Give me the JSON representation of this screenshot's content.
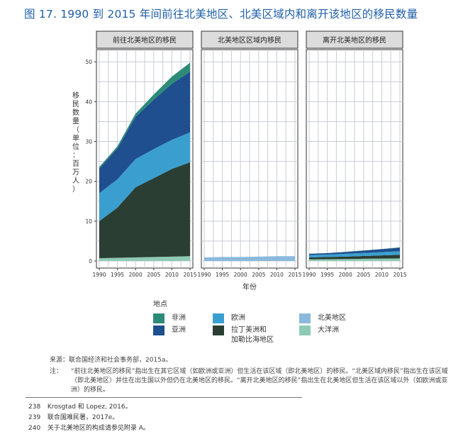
{
  "title": "图 17. 1990 到 2015 年间前往北美地区、北美区域内和离开该地区的移民数量",
  "chart_data": {
    "type": "area",
    "stacked": true,
    "ylabel": "移民数量（单位：百万人）",
    "xlabel": "年份",
    "ylim": [
      0,
      52
    ],
    "yticks": [
      0,
      10,
      20,
      30,
      40,
      50
    ],
    "x": [
      1990,
      1995,
      2000,
      2005,
      2010,
      2015
    ],
    "grid": true,
    "panels": [
      {
        "title": "前往北美地区的移民",
        "series": [
          {
            "name": "大洋洲",
            "values": [
              0.7,
              0.8,
              0.9,
              1.0,
              1.1,
              1.2
            ]
          },
          {
            "name": "拉丁美洲和加勒比海地区",
            "values": [
              9.3,
              12.6,
              17.6,
              19.8,
              22.0,
              23.6
            ]
          },
          {
            "name": "欧洲",
            "values": [
              7.0,
              7.1,
              7.1,
              7.3,
              7.3,
              7.5
            ]
          },
          {
            "name": "亚洲",
            "values": [
              6.2,
              7.8,
              10.6,
              12.4,
              14.1,
              15.2
            ]
          },
          {
            "name": "非洲",
            "values": [
              0.4,
              0.5,
              0.8,
              1.3,
              1.8,
              2.3
            ]
          }
        ]
      },
      {
        "title": "北美地区区域内移民",
        "series": [
          {
            "name": "北美地区",
            "values": [
              0.9,
              1.0,
              1.0,
              1.1,
              1.2,
              1.2
            ]
          }
        ]
      },
      {
        "title": "离开北美地区的移民",
        "series": [
          {
            "name": "大洋洲",
            "values": [
              0.4,
              0.45,
              0.5,
              0.55,
              0.6,
              0.65
            ]
          },
          {
            "name": "拉丁美洲和加勒比海地区",
            "values": [
              0.5,
              0.55,
              0.6,
              0.7,
              0.8,
              0.9
            ]
          },
          {
            "name": "欧洲",
            "values": [
              0.6,
              0.6,
              0.7,
              0.75,
              0.8,
              0.9
            ]
          },
          {
            "name": "亚洲",
            "values": [
              0.3,
              0.35,
              0.45,
              0.6,
              0.75,
              0.9
            ]
          },
          {
            "name": "非洲",
            "values": [
              0.02,
              0.03,
              0.04,
              0.05,
              0.06,
              0.07
            ]
          }
        ]
      }
    ],
    "colors": {
      "非洲": "#2e8b78",
      "亚洲": "#1f4f8f",
      "欧洲": "#3a9fcf",
      "北美地区": "#8ab9dc",
      "拉丁美洲和加勒比海地区": "#2a3e33",
      "大洋洲": "#8ecab5"
    }
  },
  "legend": {
    "title": "地点",
    "items": [
      {
        "label": "非洲",
        "color": "#2e8b78"
      },
      {
        "label": "欧洲",
        "color": "#3a9fcf"
      },
      {
        "label": "北美地区",
        "color": "#8ab9dc"
      },
      {
        "label": "亚洲",
        "color": "#1f4f8f"
      },
      {
        "label": "拉丁美洲和\n加勒比海地区",
        "color": "#2a3e33"
      },
      {
        "label": "大洋洲",
        "color": "#8ecab5"
      }
    ]
  },
  "source": "来源：联合国经济和社会事务部，2015a。",
  "note_label": "注：",
  "note": "“前往北美地区的移民”指出生在其它区域（如欧洲或亚洲）但生活在该区域（即北美地区）的移民。“北美区域内移民”指出生在该区域（即北美地区）并住在出生国以外但仍在北美地区的移民。“离开北美地区的移民”指出生在北美地区但生活在该区域以外（如欧洲或亚洲）的移民。",
  "footnotes": [
    {
      "num": "238",
      "text": "Krosgtad 和 Lopez, 2016。"
    },
    {
      "num": "239",
      "text": "联合国难民署，2017e。"
    },
    {
      "num": "240",
      "text": "关于北美地区的构成请参见附录 A。"
    }
  ]
}
